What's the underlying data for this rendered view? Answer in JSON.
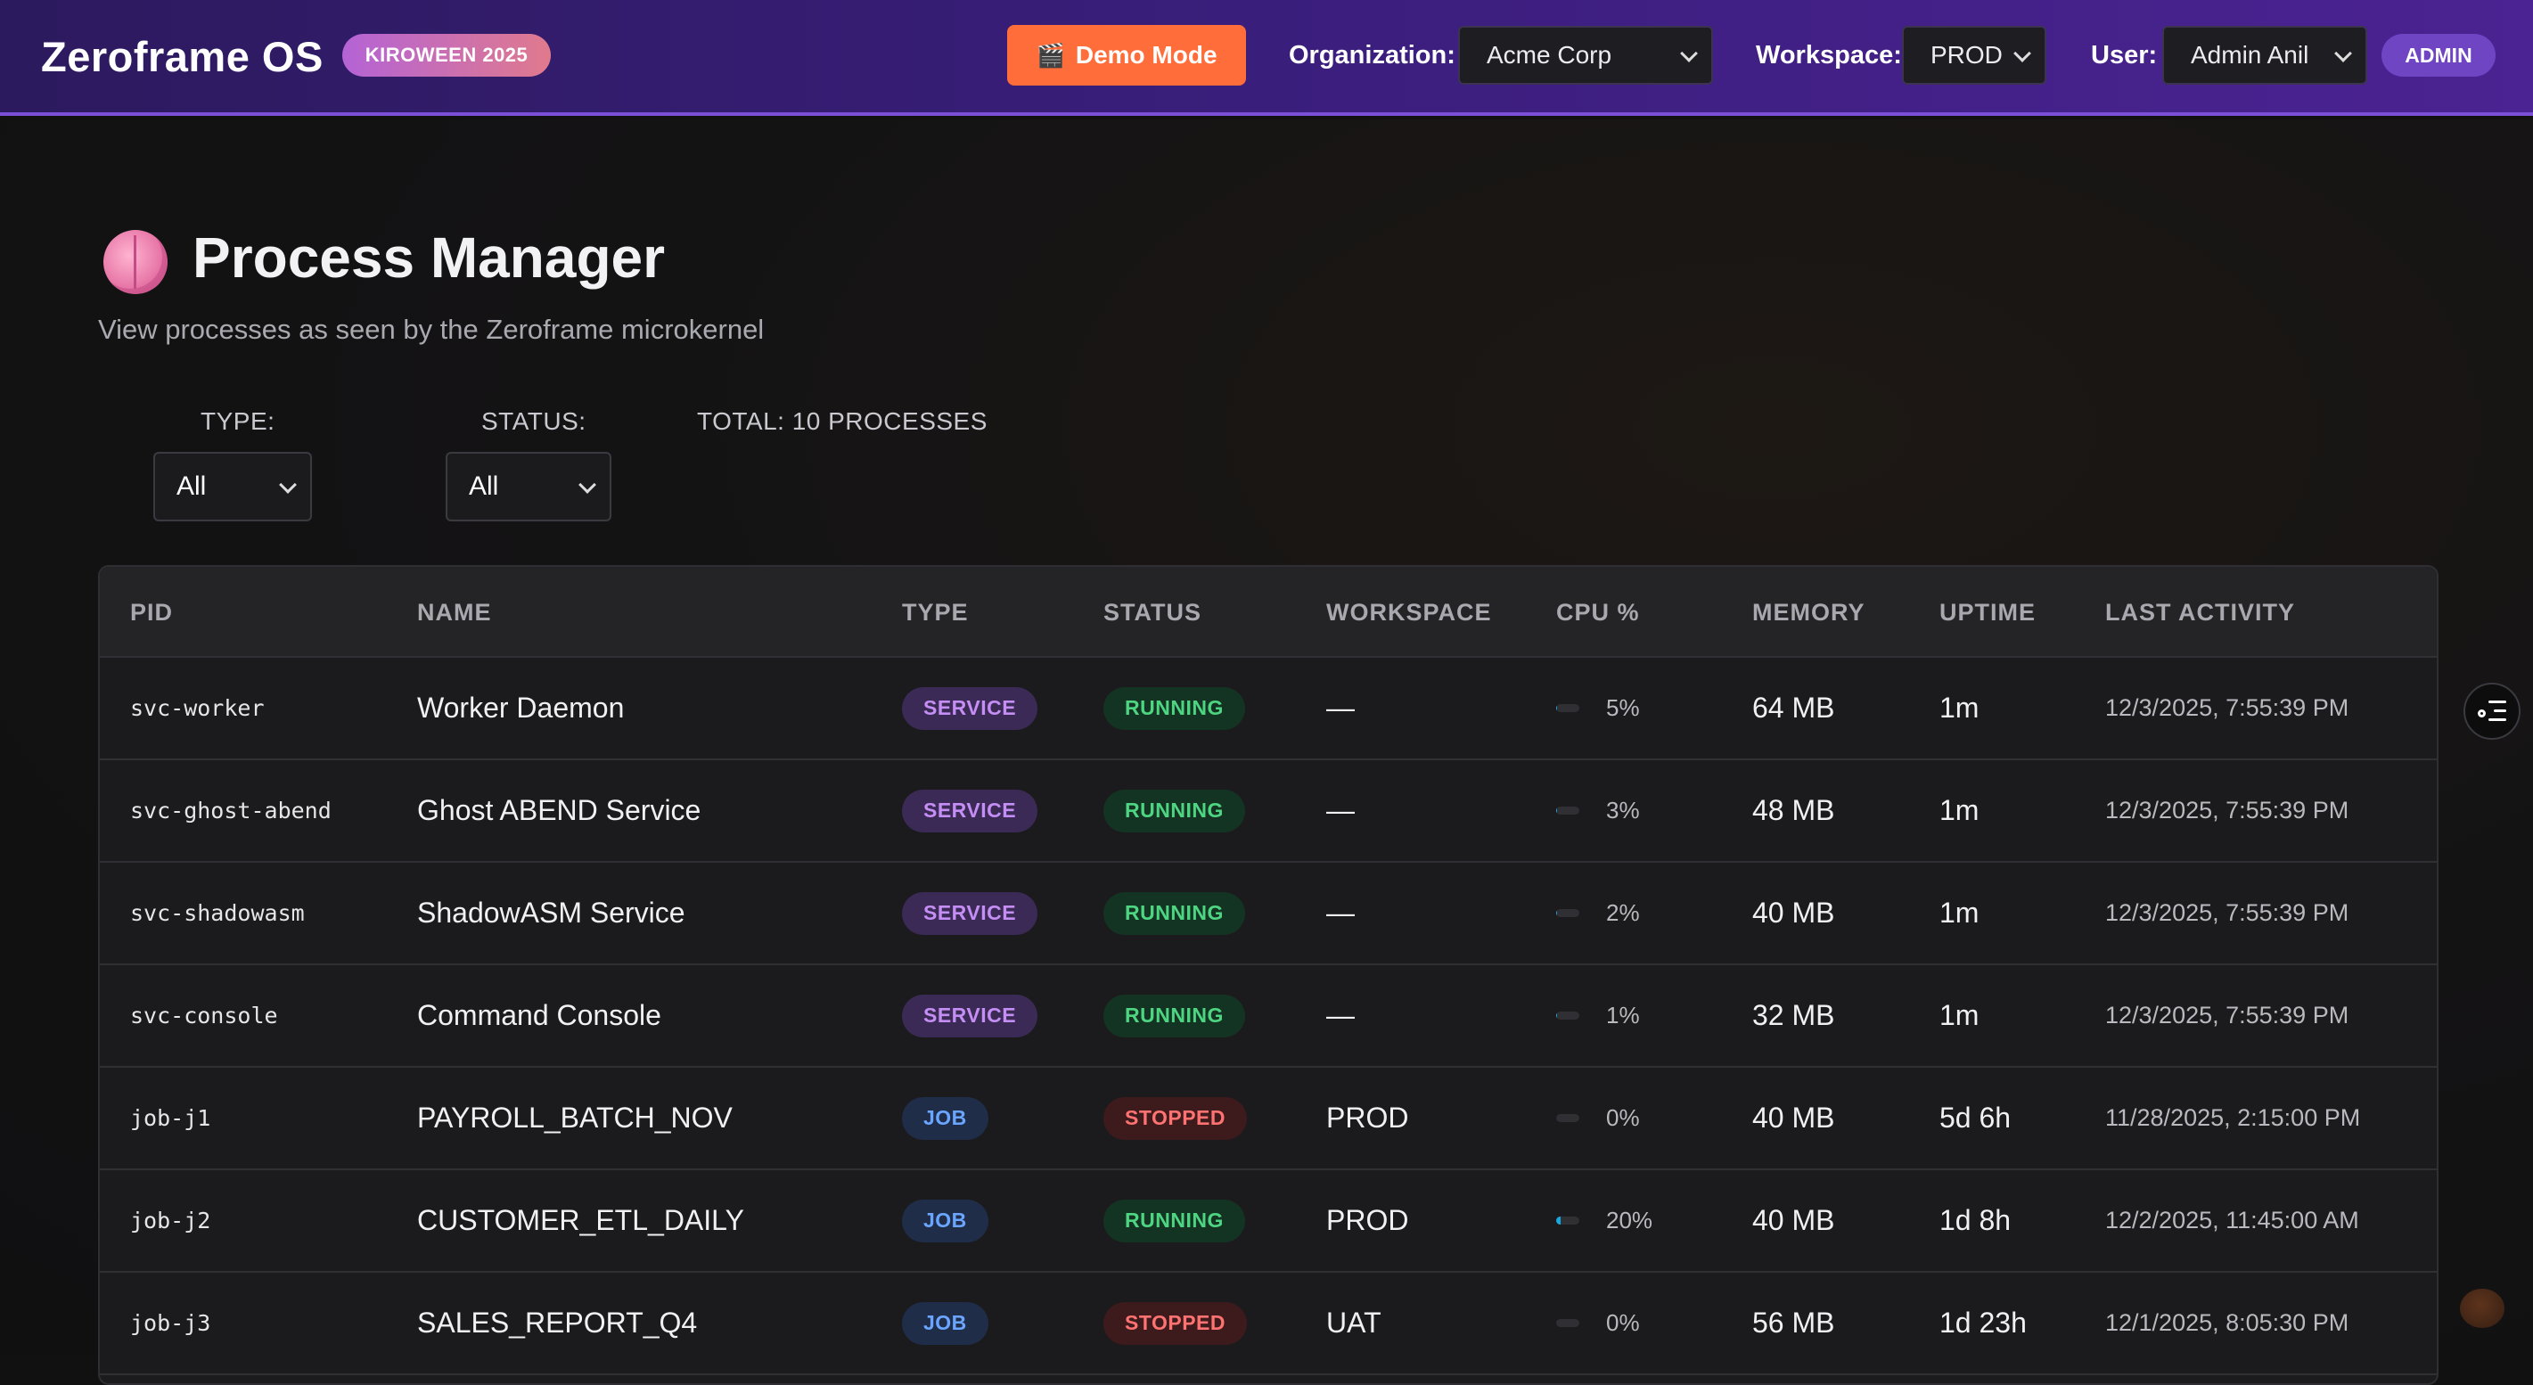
{
  "header": {
    "brand": "Zeroframe OS",
    "event_badge": "KIROWEEN 2025",
    "demo_button": "Demo Mode",
    "org_label": "Organization:",
    "org_value": "Acme Corp",
    "workspace_label": "Workspace:",
    "workspace_value": "PROD",
    "user_label": "User:",
    "user_value": "Admin Anil",
    "role_badge": "ADMIN"
  },
  "page": {
    "title": "Process Manager",
    "subtitle": "View processes as seen by the Zeroframe microkernel",
    "icon": "brain-icon"
  },
  "filters": {
    "type_label": "TYPE:",
    "type_value": "All",
    "status_label": "STATUS:",
    "status_value": "All",
    "total": "TOTAL: 10 PROCESSES"
  },
  "table": {
    "columns": [
      "PID",
      "NAME",
      "TYPE",
      "STATUS",
      "WORKSPACE",
      "CPU %",
      "MEMORY",
      "UPTIME",
      "LAST ACTIVITY"
    ],
    "rows": [
      {
        "pid": "svc-worker",
        "name": "Worker Daemon",
        "type": "SERVICE",
        "status": "RUNNING",
        "workspace": "—",
        "cpu": 5,
        "cpu_label": "5%",
        "memory": "64 MB",
        "uptime": "1m",
        "last": "12/3/2025, 7:55:39 PM"
      },
      {
        "pid": "svc-ghost-abend",
        "name": "Ghost ABEND Service",
        "type": "SERVICE",
        "status": "RUNNING",
        "workspace": "—",
        "cpu": 3,
        "cpu_label": "3%",
        "memory": "48 MB",
        "uptime": "1m",
        "last": "12/3/2025, 7:55:39 PM"
      },
      {
        "pid": "svc-shadowasm",
        "name": "ShadowASM Service",
        "type": "SERVICE",
        "status": "RUNNING",
        "workspace": "—",
        "cpu": 2,
        "cpu_label": "2%",
        "memory": "40 MB",
        "uptime": "1m",
        "last": "12/3/2025, 7:55:39 PM"
      },
      {
        "pid": "svc-console",
        "name": "Command Console",
        "type": "SERVICE",
        "status": "RUNNING",
        "workspace": "—",
        "cpu": 1,
        "cpu_label": "1%",
        "memory": "32 MB",
        "uptime": "1m",
        "last": "12/3/2025, 7:55:39 PM"
      },
      {
        "pid": "job-j1",
        "name": "PAYROLL_BATCH_NOV",
        "type": "JOB",
        "status": "STOPPED",
        "workspace": "PROD",
        "cpu": 0,
        "cpu_label": "0%",
        "memory": "40 MB",
        "uptime": "5d 6h",
        "last": "11/28/2025, 2:15:00 PM"
      },
      {
        "pid": "job-j2",
        "name": "CUSTOMER_ETL_DAILY",
        "type": "JOB",
        "status": "RUNNING",
        "workspace": "PROD",
        "cpu": 20,
        "cpu_label": "20%",
        "memory": "40 MB",
        "uptime": "1d 8h",
        "last": "12/2/2025, 11:45:00 AM"
      },
      {
        "pid": "job-j3",
        "name": "SALES_REPORT_Q4",
        "type": "JOB",
        "status": "STOPPED",
        "workspace": "UAT",
        "cpu": 0,
        "cpu_label": "0%",
        "memory": "56 MB",
        "uptime": "1d 23h",
        "last": "12/1/2025, 8:05:30 PM"
      }
    ]
  },
  "colors": {
    "accent": "#7b4fd8",
    "demo": "#ff6e3a",
    "running": "#4ed582",
    "stopped": "#ff7272",
    "service": "#c58ef5",
    "job": "#6aa5ff",
    "cpu_bar": "#19a7e0"
  }
}
